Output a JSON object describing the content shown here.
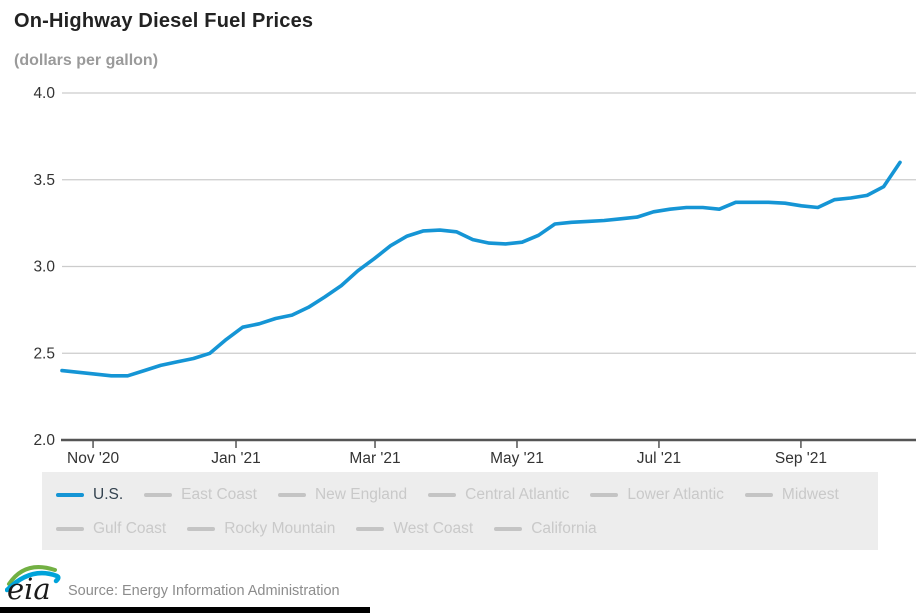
{
  "title": "On-Highway Diesel Fuel Prices",
  "subtitle": "(dollars per gallon)",
  "source_text": "Source: Energy Information Administration",
  "logo_text": "eia",
  "colors": {
    "line": "#1595d5",
    "grid": "#cccccc",
    "axis": "#555555",
    "tick_label": "#333333",
    "title": "#222222",
    "subtitle": "#9a9a9a",
    "legend_bg": "#ededed",
    "legend_inactive": "#c9c9c9",
    "legend_active_label": "#33424f",
    "source": "#8c8c8c",
    "logo_green": "#72b043",
    "logo_blue": "#00a3da"
  },
  "legend": {
    "rows": [
      [
        {
          "label": "U.S.",
          "active": true
        },
        {
          "label": "East Coast",
          "active": false
        },
        {
          "label": "New England",
          "active": false
        },
        {
          "label": "Central Atlantic",
          "active": false
        },
        {
          "label": "Lower Atlantic",
          "active": false
        },
        {
          "label": "Midwest",
          "active": false
        }
      ],
      [
        {
          "label": "Gulf Coast",
          "active": false
        },
        {
          "label": "Rocky Mountain",
          "active": false
        },
        {
          "label": "West Coast",
          "active": false
        },
        {
          "label": "California",
          "active": false
        }
      ]
    ]
  },
  "chart_data": {
    "type": "line",
    "title": "On-Highway Diesel Fuel Prices",
    "ylabel": "dollars per gallon",
    "xlabel": "",
    "grid": true,
    "legend_position": "bottom",
    "ylim": [
      2.0,
      4.0
    ],
    "y_ticks": [
      2.0,
      2.5,
      3.0,
      3.5,
      4.0
    ],
    "x_unit": "weeks",
    "x_range": [
      0,
      51
    ],
    "x_ticks": [
      {
        "label": "Nov '20",
        "week": 1.89
      },
      {
        "label": "Jan '21",
        "week": 10.59
      },
      {
        "label": "Mar '21",
        "week": 19.05
      },
      {
        "label": "May '21",
        "week": 27.69
      },
      {
        "label": "Jul '21",
        "week": 36.33
      },
      {
        "label": "Sep '21",
        "week": 44.97
      }
    ],
    "series": [
      {
        "name": "U.S.",
        "color": "#1595d5",
        "values": [
          2.4,
          2.39,
          2.38,
          2.37,
          2.37,
          2.4,
          2.43,
          2.45,
          2.47,
          2.5,
          2.58,
          2.65,
          2.67,
          2.7,
          2.72,
          2.765,
          2.825,
          2.89,
          2.975,
          3.045,
          3.12,
          3.175,
          3.205,
          3.21,
          3.2,
          3.155,
          3.135,
          3.13,
          3.14,
          3.18,
          3.245,
          3.255,
          3.26,
          3.265,
          3.275,
          3.285,
          3.315,
          3.33,
          3.34,
          3.34,
          3.33,
          3.37,
          3.37,
          3.37,
          3.365,
          3.35,
          3.34,
          3.385,
          3.395,
          3.41,
          3.46,
          3.6
        ]
      }
    ]
  }
}
